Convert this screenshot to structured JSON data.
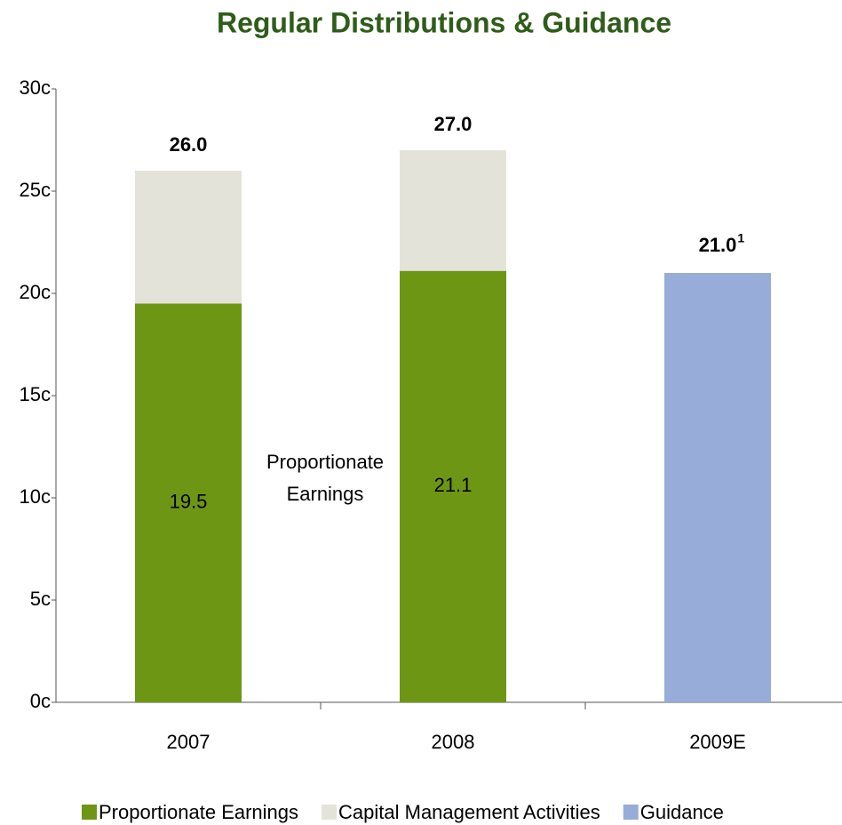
{
  "chart_data": {
    "type": "stacked_bar",
    "title": "Regular Distributions & Guidance",
    "categories": [
      "2007",
      "2008",
      "2009E"
    ],
    "series": [
      {
        "name": "Proportionate Earnings",
        "color": "#6e9615",
        "values": [
          19.5,
          21.1,
          null
        ]
      },
      {
        "name": "Capital Management Activities",
        "color": "#e3e3d9",
        "values": [
          6.5,
          5.9,
          null
        ]
      },
      {
        "name": "Guidance",
        "color": "#98acd9",
        "values": [
          null,
          null,
          21.0
        ],
        "value_labels": [
          null,
          null,
          "21.0"
        ]
      }
    ],
    "inner_label_series": 0,
    "total_labels": [
      "26.0",
      "27.0",
      null
    ],
    "footnote_mark": "1",
    "annotation": [
      "Proportionate",
      "Earnings"
    ],
    "ylim": [
      0,
      30
    ],
    "yticks": [
      {
        "value": 0,
        "label": "0c"
      },
      {
        "value": 5,
        "label": "5c"
      },
      {
        "value": 10,
        "label": "10c"
      },
      {
        "value": 15,
        "label": "15c"
      },
      {
        "value": 20,
        "label": "20c"
      },
      {
        "value": 25,
        "label": "25c"
      },
      {
        "value": 30,
        "label": "30c"
      }
    ],
    "legend": "bottom"
  }
}
